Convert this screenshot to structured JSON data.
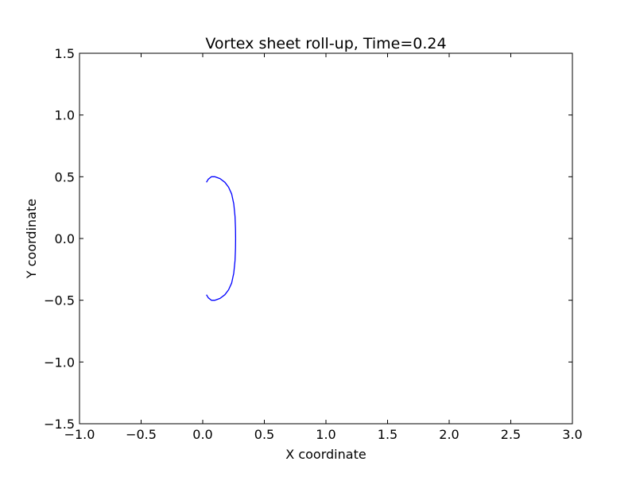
{
  "chart_data": {
    "type": "line",
    "title": "Vortex sheet roll-up, Time=0.24",
    "xlabel": "X coordinate",
    "ylabel": "Y coordinate",
    "xlim": [
      -1.0,
      3.0
    ],
    "ylim": [
      -1.5,
      1.5
    ],
    "xticks": [
      -1.0,
      -0.5,
      0.0,
      0.5,
      1.0,
      1.5,
      2.0,
      2.5,
      3.0
    ],
    "xtick_labels": [
      "−1.0",
      "−0.5",
      "0.0",
      "0.5",
      "1.0",
      "1.5",
      "2.0",
      "2.5",
      "3.0"
    ],
    "yticks": [
      -1.5,
      -1.0,
      -0.5,
      0.0,
      0.5,
      1.0,
      1.5
    ],
    "ytick_labels": [
      "−1.5",
      "−1.0",
      "−0.5",
      "0.0",
      "0.5",
      "1.0",
      "1.5"
    ],
    "grid": false,
    "colors": {
      "series": "#0000ff",
      "axes": "#000000",
      "background": "#ffffff"
    },
    "series": [
      {
        "x": [
          0.03,
          0.045,
          0.07,
          0.1,
          0.14,
          0.18,
          0.21,
          0.235,
          0.252,
          0.262,
          0.266,
          0.267,
          0.266,
          0.262,
          0.252,
          0.235,
          0.21,
          0.18,
          0.14,
          0.1,
          0.07,
          0.045,
          0.03
        ],
        "y": [
          0.455,
          0.48,
          0.5,
          0.5,
          0.485,
          0.455,
          0.415,
          0.36,
          0.28,
          0.18,
          0.08,
          0.0,
          -0.08,
          -0.18,
          -0.28,
          -0.36,
          -0.415,
          -0.455,
          -0.485,
          -0.5,
          -0.5,
          -0.48,
          -0.455
        ]
      }
    ]
  }
}
